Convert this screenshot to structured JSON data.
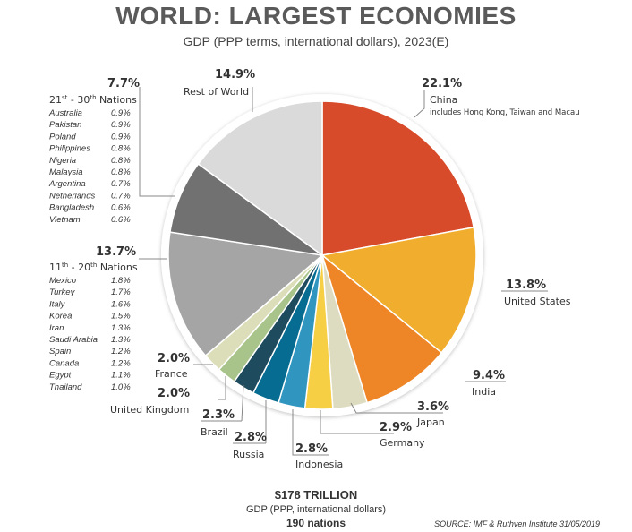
{
  "header": {
    "title": "WORLD: LARGEST ECONOMIES",
    "subtitle": "GDP (PPP terms, international dollars), 2023(E)"
  },
  "chart_data": {
    "type": "pie",
    "title": "WORLD: LARGEST ECONOMIES",
    "subtitle": "GDP (PPP terms, international dollars), 2023(E)",
    "start_angle_deg": 0,
    "direction": "clockwise",
    "slices": [
      {
        "label": "China",
        "value": 22.1,
        "pct_text": "22.1%",
        "color": "#D84B2A",
        "note": "includes Hong Kong, Taiwan and Macau"
      },
      {
        "label": "United States",
        "value": 13.8,
        "pct_text": "13.8%",
        "color": "#F1AE2E"
      },
      {
        "label": "India",
        "value": 9.4,
        "pct_text": "9.4%",
        "color": "#EE8526"
      },
      {
        "label": "Japan",
        "value": 3.6,
        "pct_text": "3.6%",
        "color": "#DEDCC0"
      },
      {
        "label": "Germany",
        "value": 2.9,
        "pct_text": "2.9%",
        "color": "#F6CF45"
      },
      {
        "label": "Indonesia",
        "value": 2.8,
        "pct_text": "2.8%",
        "color": "#3096BF"
      },
      {
        "label": "Russia",
        "value": 2.8,
        "pct_text": "2.8%",
        "color": "#066C92"
      },
      {
        "label": "Brazil",
        "value": 2.3,
        "pct_text": "2.3%",
        "color": "#1E4B5E"
      },
      {
        "label": "United Kingdom",
        "value": 2.0,
        "pct_text": "2.0%",
        "color": "#A8C48A"
      },
      {
        "label": "France",
        "value": 2.0,
        "pct_text": "2.0%",
        "color": "#DCDEBA"
      },
      {
        "label": "11th - 20th Nations",
        "value": 13.7,
        "pct_text": "13.7%",
        "color": "#A5A5A5"
      },
      {
        "label": "21st - 30th Nations",
        "value": 7.7,
        "pct_text": "7.7%",
        "color": "#717171"
      },
      {
        "label": "Rest of World",
        "value": 14.9,
        "pct_text": "14.9%",
        "color": "#DADADA"
      }
    ],
    "group_11_20": {
      "heading_pre": "11",
      "heading_sup": "th",
      "heading_post": " - 20",
      "heading_sup2": "th",
      "heading_end": " Nations",
      "rows": [
        {
          "name": "Mexico",
          "value": "1.8%"
        },
        {
          "name": "Turkey",
          "value": "1.7%"
        },
        {
          "name": "Italy",
          "value": "1.6%"
        },
        {
          "name": "Korea",
          "value": "1.5%"
        },
        {
          "name": "Iran",
          "value": "1.3%"
        },
        {
          "name": "Saudi Arabia",
          "value": "1.3%"
        },
        {
          "name": "Spain",
          "value": "1.2%"
        },
        {
          "name": "Canada",
          "value": "1.2%"
        },
        {
          "name": "Egypt",
          "value": "1.1%"
        },
        {
          "name": "Thailand",
          "value": "1.0%"
        }
      ]
    },
    "group_21_30": {
      "heading_pre": "21",
      "heading_sup": "st",
      "heading_post": " - 30",
      "heading_sup2": "th",
      "heading_end": " Nations",
      "rows": [
        {
          "name": "Australia",
          "value": "0.9%"
        },
        {
          "name": "Pakistan",
          "value": "0.9%"
        },
        {
          "name": "Poland",
          "value": "0.9%"
        },
        {
          "name": "Philippines",
          "value": "0.8%"
        },
        {
          "name": "Nigeria",
          "value": "0.8%"
        },
        {
          "name": "Malaysia",
          "value": "0.8%"
        },
        {
          "name": "Argentina",
          "value": "0.7%"
        },
        {
          "name": "Netherlands",
          "value": "0.7%"
        },
        {
          "name": "Bangladesh",
          "value": "0.6%"
        },
        {
          "name": "Vietnam",
          "value": "0.6%"
        }
      ]
    }
  },
  "footer": {
    "total": "$178 TRILLION",
    "total_sub": "GDP (PPP, international dollars)",
    "nations": "190 nations",
    "source": "SOURCE: IMF & Ruthven Institute 31/05/2019"
  }
}
